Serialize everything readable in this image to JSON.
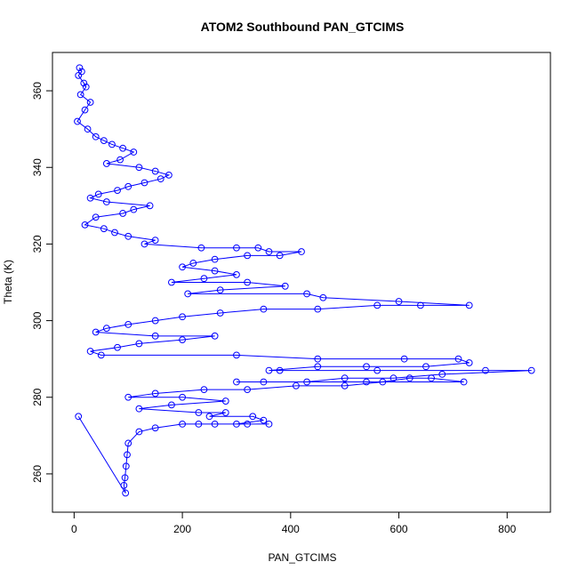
{
  "chart_data": {
    "type": "scatter",
    "title": "ATOM2 Southbound PAN_GTCIMS",
    "xlabel": "PAN_GTCIMS",
    "ylabel": "Theta (K)",
    "xlim": [
      -40,
      880
    ],
    "ylim": [
      250,
      370
    ],
    "xticks": [
      0,
      200,
      400,
      600,
      800
    ],
    "yticks": [
      260,
      280,
      300,
      320,
      340,
      360
    ],
    "grid": false,
    "legend": "none",
    "series_color": "#0000ff",
    "marker": "open-circle",
    "connect_points": true,
    "series": [
      {
        "points": [
          [
            10,
            366
          ],
          [
            14,
            365
          ],
          [
            8,
            364
          ],
          [
            18,
            362
          ],
          [
            22,
            361
          ],
          [
            12,
            359
          ],
          [
            30,
            357
          ],
          [
            20,
            355
          ],
          [
            6,
            352
          ],
          [
            25,
            350
          ],
          [
            40,
            348
          ],
          [
            55,
            347
          ],
          [
            70,
            346
          ],
          [
            90,
            345
          ],
          [
            110,
            344
          ],
          [
            85,
            342
          ],
          [
            60,
            341
          ],
          [
            120,
            340
          ],
          [
            150,
            339
          ],
          [
            175,
            338
          ],
          [
            160,
            337
          ],
          [
            130,
            336
          ],
          [
            100,
            335
          ],
          [
            80,
            334
          ],
          [
            45,
            333
          ],
          [
            30,
            332
          ],
          [
            60,
            331
          ],
          [
            140,
            330
          ],
          [
            110,
            329
          ],
          [
            90,
            328
          ],
          [
            40,
            327
          ],
          [
            20,
            325
          ],
          [
            55,
            324
          ],
          [
            75,
            323
          ],
          [
            100,
            322
          ],
          [
            150,
            321
          ],
          [
            130,
            320
          ],
          [
            235,
            319
          ],
          [
            300,
            319
          ],
          [
            340,
            319
          ],
          [
            360,
            318
          ],
          [
            420,
            318
          ],
          [
            380,
            317
          ],
          [
            320,
            317
          ],
          [
            260,
            316
          ],
          [
            220,
            315
          ],
          [
            200,
            314
          ],
          [
            260,
            313
          ],
          [
            300,
            312
          ],
          [
            240,
            311
          ],
          [
            180,
            310
          ],
          [
            320,
            310
          ],
          [
            390,
            309
          ],
          [
            270,
            308
          ],
          [
            210,
            307
          ],
          [
            430,
            307
          ],
          [
            460,
            306
          ],
          [
            600,
            305
          ],
          [
            730,
            304
          ],
          [
            640,
            304
          ],
          [
            560,
            304
          ],
          [
            450,
            303
          ],
          [
            350,
            303
          ],
          [
            270,
            302
          ],
          [
            200,
            301
          ],
          [
            150,
            300
          ],
          [
            100,
            299
          ],
          [
            60,
            298
          ],
          [
            40,
            297
          ],
          [
            150,
            296
          ],
          [
            260,
            296
          ],
          [
            200,
            295
          ],
          [
            120,
            294
          ],
          [
            80,
            293
          ],
          [
            30,
            292
          ],
          [
            50,
            291
          ],
          [
            300,
            291
          ],
          [
            450,
            290
          ],
          [
            610,
            290
          ],
          [
            710,
            290
          ],
          [
            730,
            289
          ],
          [
            650,
            288
          ],
          [
            540,
            288
          ],
          [
            450,
            288
          ],
          [
            360,
            287
          ],
          [
            380,
            287
          ],
          [
            560,
            287
          ],
          [
            760,
            287
          ],
          [
            845,
            287
          ],
          [
            680,
            286
          ],
          [
            590,
            285
          ],
          [
            500,
            285
          ],
          [
            430,
            284
          ],
          [
            350,
            284
          ],
          [
            300,
            284
          ],
          [
            540,
            284
          ],
          [
            720,
            284
          ],
          [
            660,
            285
          ],
          [
            620,
            285
          ],
          [
            570,
            284
          ],
          [
            500,
            283
          ],
          [
            410,
            283
          ],
          [
            320,
            282
          ],
          [
            240,
            282
          ],
          [
            150,
            281
          ],
          [
            100,
            280
          ],
          [
            200,
            280
          ],
          [
            280,
            279
          ],
          [
            180,
            278
          ],
          [
            120,
            277
          ],
          [
            230,
            276
          ],
          [
            280,
            276
          ],
          [
            250,
            275
          ],
          [
            330,
            275
          ],
          [
            350,
            274
          ],
          [
            300,
            273
          ],
          [
            260,
            273
          ],
          [
            230,
            273
          ],
          [
            320,
            273
          ],
          [
            360,
            273
          ],
          [
            200,
            273
          ],
          [
            150,
            272
          ],
          [
            120,
            271
          ],
          [
            100,
            268
          ],
          [
            98,
            265
          ],
          [
            96,
            262
          ],
          [
            94,
            259
          ],
          [
            92,
            257
          ],
          [
            95,
            255
          ],
          [
            8,
            275
          ]
        ]
      }
    ]
  }
}
